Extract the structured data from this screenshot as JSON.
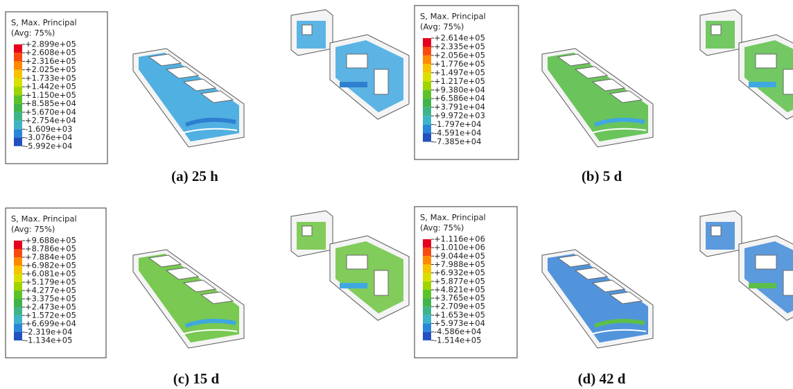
{
  "panels": [
    {
      "legend": {
        "title": "S, Max. Principal",
        "subtitle": "(Avg: 75%)",
        "labels": [
          "+2.899e+05",
          "+2.608e+05",
          "+2.316e+05",
          "+2.025e+05",
          "+1.733e+05",
          "+1.442e+05",
          "+1.150e+05",
          "+8.585e+04",
          "+5.670e+04",
          "+2.754e+04",
          "-1.609e+03",
          "-3.076e+04",
          "-5.992e+04"
        ]
      },
      "caption": "(a) 25 h"
    },
    {
      "legend": {
        "title": "S, Max. Principal",
        "subtitle": "(Avg: 75%)",
        "labels": [
          "+2.614e+05",
          "+2.335e+05",
          "+2.056e+05",
          "+1.776e+05",
          "+1.497e+05",
          "+1.217e+05",
          "+9.380e+04",
          "+6.586e+04",
          "+3.791e+04",
          "+9.972e+03",
          "-1.797e+04",
          "-4.591e+04",
          "-7.385e+04"
        ]
      },
      "caption": "(b) 5 d"
    },
    {
      "legend": {
        "title": "S, Max. Principal",
        "subtitle": "(Avg: 75%)",
        "labels": [
          "+9.688e+05",
          "+8.786e+05",
          "+7.884e+05",
          "+6.982e+05",
          "+6.081e+05",
          "+5.179e+05",
          "+4.277e+05",
          "+3.375e+05",
          "+2.473e+05",
          "+1.572e+05",
          "+6.699e+04",
          "-2.319e+04",
          "-1.134e+05"
        ]
      },
      "caption": "(c) 15 d"
    },
    {
      "legend": {
        "title": "S, Max. Principal",
        "subtitle": "(Avg: 75%)",
        "labels": [
          "+1.116e+06",
          "+1.010e+06",
          "+9.044e+05",
          "+7.988e+05",
          "+6.932e+05",
          "+5.877e+05",
          "+4.821e+05",
          "+3.765e+05",
          "+2.709e+05",
          "+1.653e+05",
          "+5.973e+04",
          "-4.586e+04",
          "-1.514e+05"
        ]
      },
      "caption": "(d) 42 d"
    }
  ]
}
